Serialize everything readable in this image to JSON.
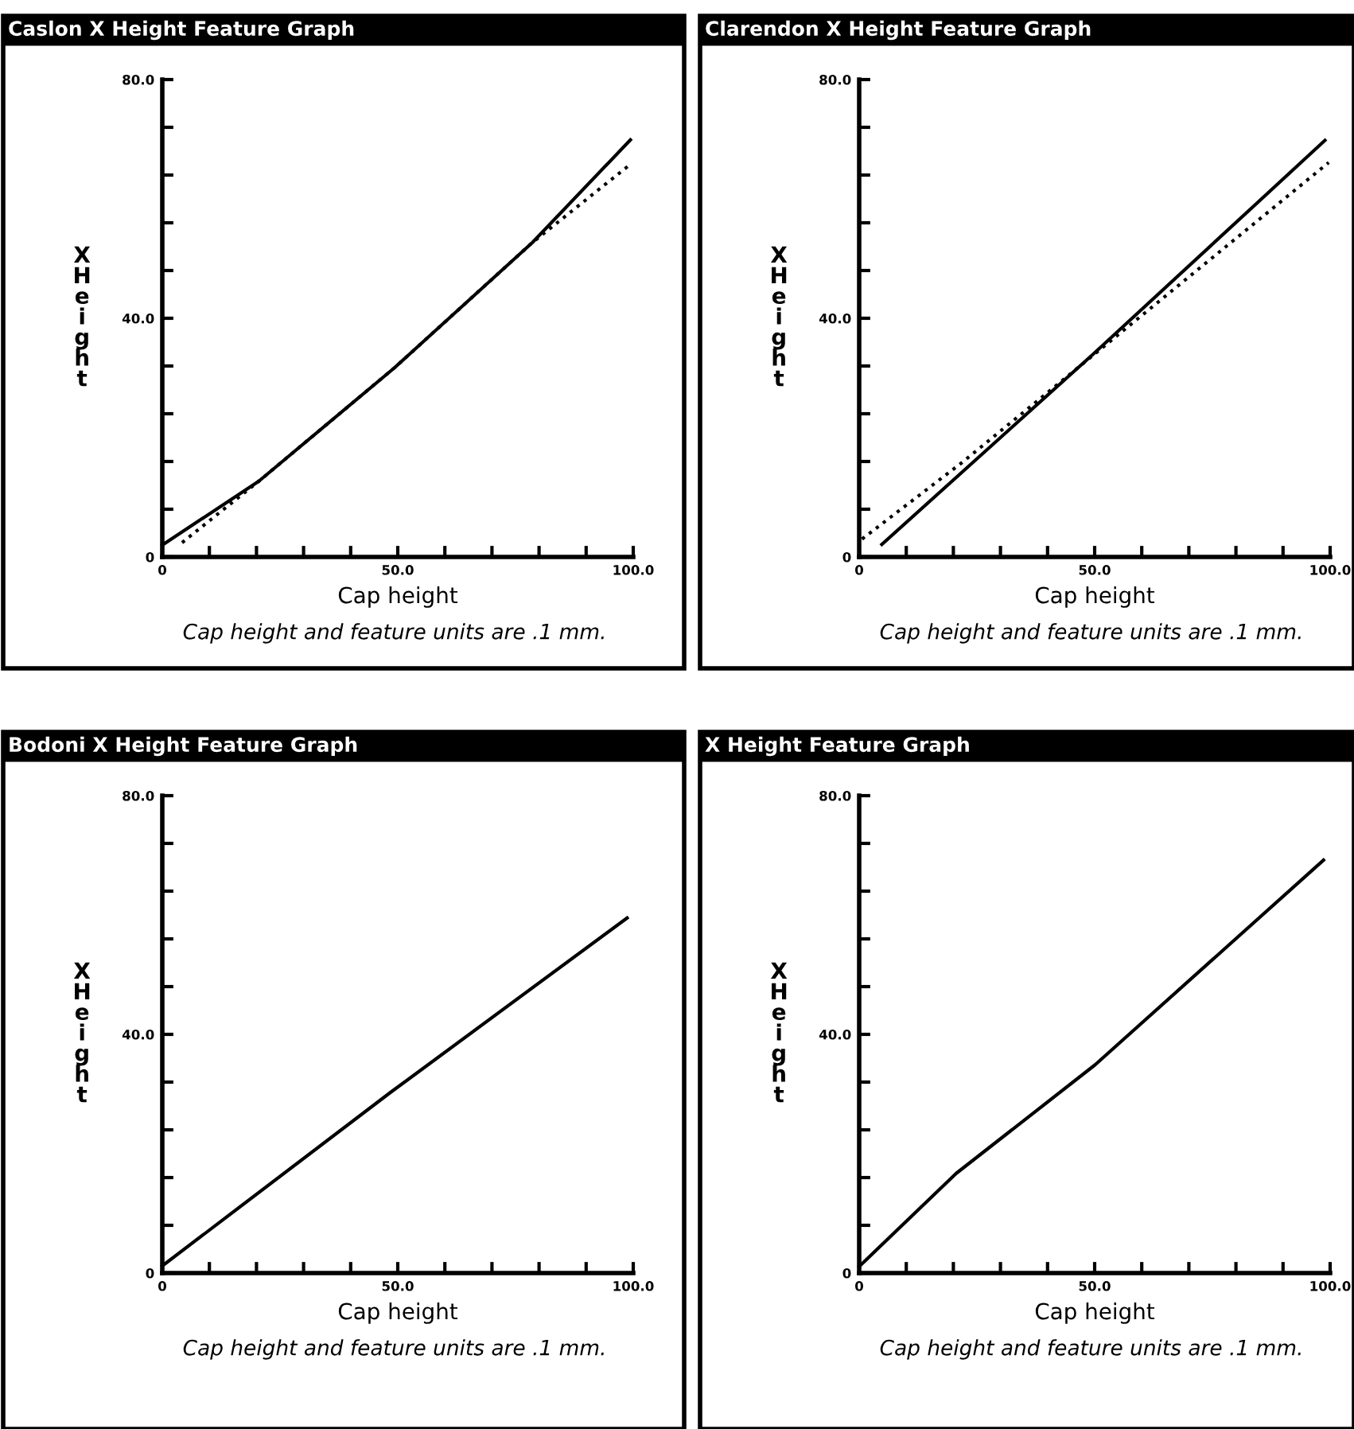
{
  "chart_data": [
    {
      "type": "line",
      "title": "Caslon X Height Feature Graph",
      "xlabel": "Cap height",
      "ylabel": "X\nH\ne\ni\ng\nh\nt",
      "annotations": [
        "Cap height and feature units are .1 mm."
      ],
      "xlim": [
        0,
        100
      ],
      "ylim": [
        0,
        80
      ],
      "xticks": [
        {
          "value": 0,
          "label": "0"
        },
        {
          "value": 10,
          "label": null
        },
        {
          "value": 20,
          "label": null
        },
        {
          "value": 30,
          "label": null
        },
        {
          "value": 40,
          "label": null
        },
        {
          "value": 50,
          "label": "50.0"
        },
        {
          "value": 60,
          "label": null
        },
        {
          "value": 70,
          "label": null
        },
        {
          "value": 80,
          "label": null
        },
        {
          "value": 90,
          "label": null
        },
        {
          "value": 100,
          "label": "100.0"
        }
      ],
      "yticks": [
        {
          "value": 0,
          "label": "0"
        },
        {
          "value": 8,
          "label": null
        },
        {
          "value": 16,
          "label": null
        },
        {
          "value": 24,
          "label": null
        },
        {
          "value": 32,
          "label": null
        },
        {
          "value": 40,
          "label": "40.0"
        },
        {
          "value": 48,
          "label": null
        },
        {
          "value": 56,
          "label": null
        },
        {
          "value": 64,
          "label": null
        },
        {
          "value": 72,
          "label": null
        },
        {
          "value": 80,
          "label": "80.0"
        }
      ],
      "grid": false,
      "series": [
        {
          "color": "#000000",
          "line_style": "solid",
          "x": [
            0,
            20.5,
            49.3,
            78.6,
            99.4
          ],
          "values": [
            2.0,
            12.7,
            31.7,
            52.7,
            69.9
          ]
        },
        {
          "color": "#000000",
          "line_style": "dotted",
          "x": [
            4.2,
            20.5,
            49.3,
            78.6,
            99.4
          ],
          "values": [
            2.4,
            12.7,
            31.7,
            52.7,
            65.8
          ]
        }
      ]
    },
    {
      "type": "line",
      "title": "Clarendon X Height Feature Graph",
      "xlabel": "Cap height",
      "ylabel": "X\nH\ne\ni\ng\nh\nt",
      "annotations": [
        "Cap height and feature units are .1 mm."
      ],
      "xlim": [
        0,
        100
      ],
      "ylim": [
        0,
        80
      ],
      "xticks": [
        {
          "value": 0,
          "label": "0"
        },
        {
          "value": 10,
          "label": null
        },
        {
          "value": 20,
          "label": null
        },
        {
          "value": 30,
          "label": null
        },
        {
          "value": 40,
          "label": null
        },
        {
          "value": 50,
          "label": "50.0"
        },
        {
          "value": 60,
          "label": null
        },
        {
          "value": 70,
          "label": null
        },
        {
          "value": 80,
          "label": null
        },
        {
          "value": 90,
          "label": null
        },
        {
          "value": 100,
          "label": "100.0"
        }
      ],
      "yticks": [
        {
          "value": 0,
          "label": "0"
        },
        {
          "value": 8,
          "label": null
        },
        {
          "value": 16,
          "label": null
        },
        {
          "value": 24,
          "label": null
        },
        {
          "value": 32,
          "label": null
        },
        {
          "value": 40,
          "label": "40.0"
        },
        {
          "value": 48,
          "label": null
        },
        {
          "value": 56,
          "label": null
        },
        {
          "value": 64,
          "label": null
        },
        {
          "value": 72,
          "label": null
        },
        {
          "value": 80,
          "label": "80.0"
        }
      ],
      "grid": false,
      "series": [
        {
          "color": "#000000",
          "line_style": "solid",
          "x": [
            4.8,
            49.7,
            98.9
          ],
          "values": [
            2.1,
            34.0,
            69.8
          ]
        },
        {
          "color": "#000000",
          "line_style": "dotted",
          "x": [
            0.6,
            21.8,
            99.7
          ],
          "values": [
            3.0,
            15.8,
            66.1
          ]
        }
      ]
    },
    {
      "type": "line",
      "title": "Bodoni X Height Feature Graph",
      "xlabel": "Cap height",
      "ylabel": "X\nH\ne\ni\ng\nh\nt",
      "annotations": [
        "Cap height and feature units are .1 mm."
      ],
      "xlim": [
        0,
        100
      ],
      "ylim": [
        0,
        80
      ],
      "xticks": [
        {
          "value": 0,
          "label": "0"
        },
        {
          "value": 10,
          "label": null
        },
        {
          "value": 20,
          "label": null
        },
        {
          "value": 30,
          "label": null
        },
        {
          "value": 40,
          "label": null
        },
        {
          "value": 50,
          "label": "50.0"
        },
        {
          "value": 60,
          "label": null
        },
        {
          "value": 70,
          "label": null
        },
        {
          "value": 80,
          "label": null
        },
        {
          "value": 90,
          "label": null
        },
        {
          "value": 100,
          "label": "100.0"
        }
      ],
      "yticks": [
        {
          "value": 0,
          "label": "0"
        },
        {
          "value": 8,
          "label": null
        },
        {
          "value": 16,
          "label": null
        },
        {
          "value": 24,
          "label": null
        },
        {
          "value": 32,
          "label": null
        },
        {
          "value": 40,
          "label": "40.0"
        },
        {
          "value": 48,
          "label": null
        },
        {
          "value": 56,
          "label": null
        },
        {
          "value": 64,
          "label": null
        },
        {
          "value": 72,
          "label": null
        },
        {
          "value": 80,
          "label": "80.0"
        }
      ],
      "grid": false,
      "series": [
        {
          "color": "#000000",
          "line_style": "solid",
          "x": [
            0,
            48.5,
            98.7
          ],
          "values": [
            1.2,
            30.3,
            59.5
          ]
        }
      ]
    },
    {
      "type": "line",
      "title": "X Height Feature Graph",
      "xlabel": "Cap height",
      "ylabel": "X\nH\ne\ni\ng\nh\nt",
      "annotations": [
        "Cap height and feature units are .1 mm."
      ],
      "xlim": [
        0,
        100
      ],
      "ylim": [
        0,
        80
      ],
      "xticks": [
        {
          "value": 0,
          "label": "0"
        },
        {
          "value": 10,
          "label": null
        },
        {
          "value": 20,
          "label": null
        },
        {
          "value": 30,
          "label": null
        },
        {
          "value": 40,
          "label": null
        },
        {
          "value": 50,
          "label": "50.0"
        },
        {
          "value": 60,
          "label": null
        },
        {
          "value": 70,
          "label": null
        },
        {
          "value": 80,
          "label": null
        },
        {
          "value": 90,
          "label": null
        },
        {
          "value": 100,
          "label": "100.0"
        }
      ],
      "yticks": [
        {
          "value": 0,
          "label": "0"
        },
        {
          "value": 8,
          "label": null
        },
        {
          "value": 16,
          "label": null
        },
        {
          "value": 24,
          "label": null
        },
        {
          "value": 32,
          "label": null
        },
        {
          "value": 40,
          "label": "40.0"
        },
        {
          "value": 48,
          "label": null
        },
        {
          "value": 56,
          "label": null
        },
        {
          "value": 64,
          "label": null
        },
        {
          "value": 72,
          "label": null
        },
        {
          "value": 80,
          "label": "80.0"
        }
      ],
      "grid": false,
      "series": [
        {
          "color": "#000000",
          "line_style": "solid",
          "x": [
            0,
            20.6,
            50.1,
            98.6
          ],
          "values": [
            1.1,
            16.7,
            34.9,
            69.2
          ]
        }
      ]
    }
  ]
}
